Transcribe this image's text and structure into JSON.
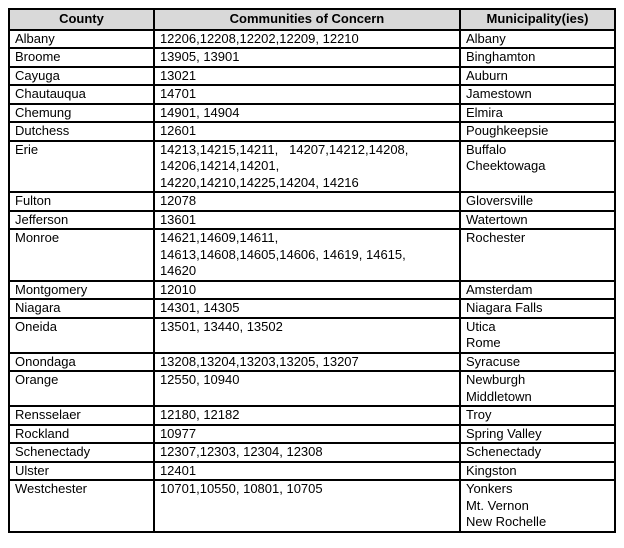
{
  "colors": {
    "header_bg": "#d9d9d9",
    "border": "#000000",
    "text": "#000000",
    "page_bg": "#ffffff"
  },
  "table": {
    "headers": [
      "County",
      "Communities of Concern",
      "Municipality(ies)"
    ],
    "rows": [
      {
        "county": "Albany",
        "communities": [
          "12206,12208,12202,12209, 12210"
        ],
        "municipalities": [
          "Albany"
        ]
      },
      {
        "county": "Broome",
        "communities": [
          "13905, 13901"
        ],
        "municipalities": [
          "Binghamton"
        ]
      },
      {
        "county": "Cayuga",
        "communities": [
          "13021"
        ],
        "municipalities": [
          "Auburn"
        ]
      },
      {
        "county": "Chautauqua",
        "communities": [
          "14701"
        ],
        "municipalities": [
          "Jamestown"
        ]
      },
      {
        "county": "Chemung",
        "communities": [
          "14901, 14904"
        ],
        "municipalities": [
          "Elmira"
        ]
      },
      {
        "county": "Dutchess",
        "communities": [
          "12601"
        ],
        "municipalities": [
          "Poughkeepsie"
        ]
      },
      {
        "county": "Erie",
        "communities": [
          "14213,14215,14211,   14207,14212,14208,",
          "14206,14214,14201,",
          "14220,14210,14225,14204, 14216"
        ],
        "municipalities": [
          "Buffalo",
          "Cheektowaga"
        ]
      },
      {
        "county": "Fulton",
        "communities": [
          "12078"
        ],
        "municipalities": [
          "Gloversville"
        ]
      },
      {
        "county": "Jefferson",
        "communities": [
          "13601"
        ],
        "municipalities": [
          "Watertown"
        ]
      },
      {
        "county": "Monroe",
        "communities": [
          "14621,14609,14611,",
          "14613,14608,14605,14606, 14619, 14615,",
          "14620"
        ],
        "municipalities": [
          "Rochester"
        ]
      },
      {
        "county": "Montgomery",
        "communities": [
          "12010"
        ],
        "municipalities": [
          "Amsterdam"
        ]
      },
      {
        "county": "Niagara",
        "communities": [
          "14301, 14305"
        ],
        "municipalities": [
          "Niagara Falls"
        ]
      },
      {
        "county": "Oneida",
        "communities": [
          "13501, 13440, 13502"
        ],
        "municipalities": [
          "Utica",
          "Rome"
        ]
      },
      {
        "county": "Onondaga",
        "communities": [
          "13208,13204,13203,13205, 13207"
        ],
        "municipalities": [
          "Syracuse"
        ]
      },
      {
        "county": "Orange",
        "communities": [
          "12550, 10940"
        ],
        "municipalities": [
          "Newburgh",
          "Middletown"
        ]
      },
      {
        "county": "Rensselaer",
        "communities": [
          "12180, 12182"
        ],
        "municipalities": [
          "Troy"
        ]
      },
      {
        "county": "Rockland",
        "communities": [
          "10977"
        ],
        "municipalities": [
          "Spring Valley"
        ]
      },
      {
        "county": "Schenectady",
        "communities": [
          "12307,12303, 12304, 12308"
        ],
        "municipalities": [
          "Schenectady"
        ]
      },
      {
        "county": "Ulster",
        "communities": [
          "12401"
        ],
        "municipalities": [
          "Kingston"
        ]
      },
      {
        "county": "Westchester",
        "communities": [
          "10701,10550, 10801, 10705"
        ],
        "municipalities": [
          "Yonkers",
          "Mt. Vernon",
          "New Rochelle"
        ]
      }
    ]
  }
}
